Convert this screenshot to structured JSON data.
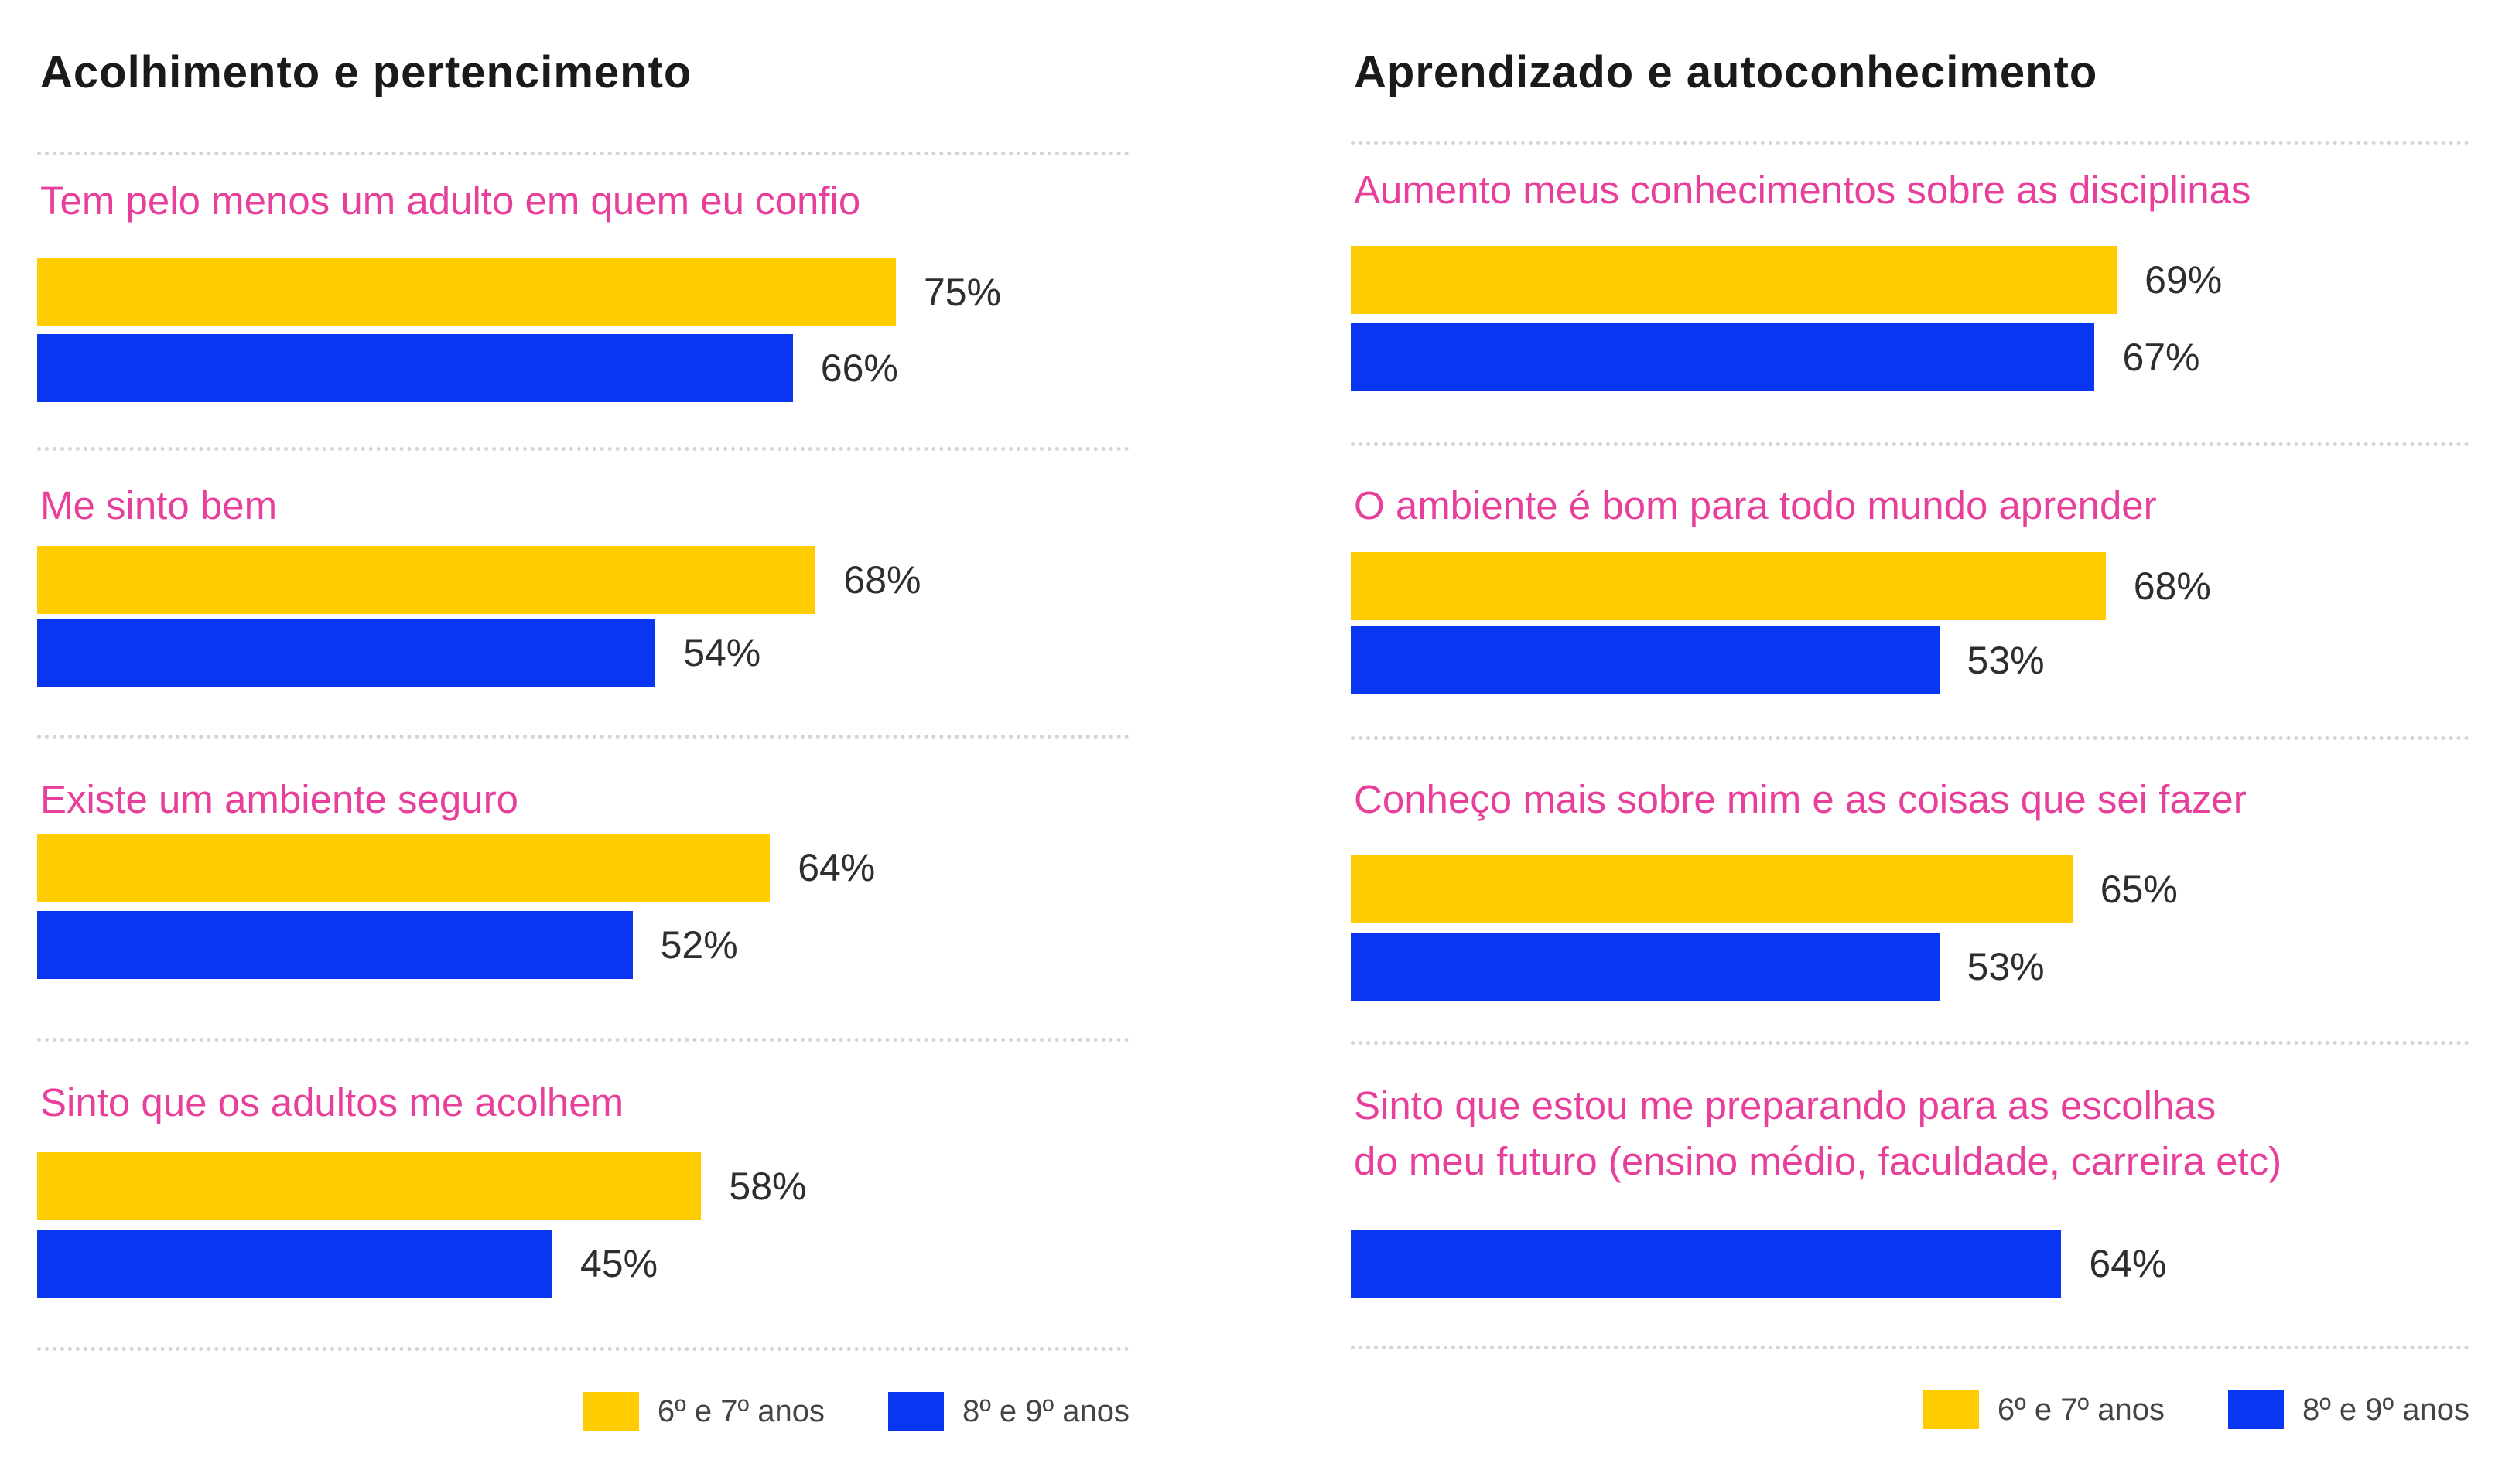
{
  "chart_data": [
    {
      "type": "bar",
      "orientation": "horizontal",
      "title": "Acolhimento e pertencimento",
      "categories": [
        "Tem pelo menos um adulto em quem eu confio",
        "Me sinto bem",
        "Existe um ambiente seguro",
        "Sinto que os adultos me acolhem"
      ],
      "series": [
        {
          "name": "6º e 7º anos",
          "color": "#ffcc00",
          "values": [
            75,
            68,
            64,
            58
          ]
        },
        {
          "name": "8º e 9º anos",
          "color": "#0a36f2",
          "values": [
            66,
            54,
            52,
            45
          ]
        }
      ],
      "value_labels": [
        [
          "75%",
          "66%"
        ],
        [
          "68%",
          "54%"
        ],
        [
          "64%",
          "52%"
        ],
        [
          "58%",
          "45%"
        ]
      ],
      "xlabel": "",
      "ylabel": "",
      "xlim": [
        0,
        100
      ],
      "grid": false,
      "legend_position": "bottom-right"
    },
    {
      "type": "bar",
      "orientation": "horizontal",
      "title": "Aprendizado e autoconhecimento",
      "categories": [
        "Aumento meus conhecimentos sobre as disciplinas",
        "O ambiente é bom para todo mundo aprender",
        "Conheço mais sobre mim e as coisas que sei fazer",
        "Sinto que estou me preparando para as escolhas\ndo meu futuro (ensino médio, faculdade, carreira etc)"
      ],
      "series": [
        {
          "name": "6º e 7º anos",
          "color": "#ffcc00",
          "values": [
            69,
            68,
            65,
            null
          ]
        },
        {
          "name": "8º e 9º anos",
          "color": "#0a36f2",
          "values": [
            67,
            53,
            53,
            64
          ]
        }
      ],
      "value_labels": [
        [
          "69%",
          "67%"
        ],
        [
          "68%",
          "53%"
        ],
        [
          "65%",
          "53%"
        ],
        [
          null,
          "64%"
        ]
      ],
      "xlabel": "",
      "ylabel": "",
      "xlim": [
        0,
        100
      ],
      "grid": false,
      "legend_position": "bottom-right"
    }
  ],
  "legend": {
    "items": [
      {
        "label": "6º e 7º anos",
        "color": "#ffcc00"
      },
      {
        "label": "8º e 9º anos",
        "color": "#0a36f2"
      }
    ]
  }
}
